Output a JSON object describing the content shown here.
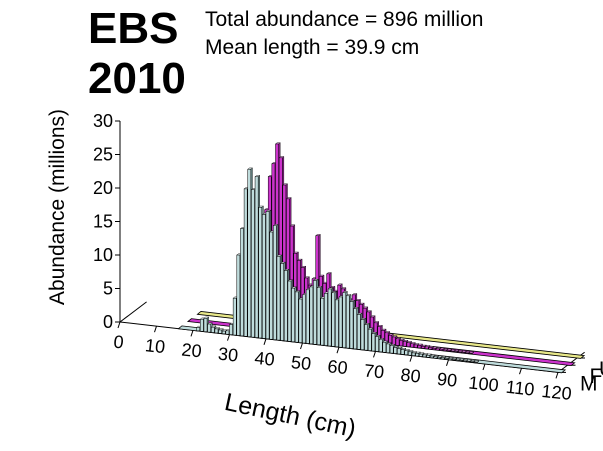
{
  "chart_data": {
    "type": "bar",
    "chart_style": "3d-depth",
    "title_line1": "EBS",
    "title_line2": "2010",
    "subtitle_line1": "Total abundance = 896 million",
    "subtitle_line2": "Mean length = 39.9 cm",
    "xlabel": "Length (cm)",
    "ylabel": "Abundance (millions)",
    "ylim": [
      0,
      30
    ],
    "yticks": [
      "0",
      "5",
      "10",
      "15",
      "20",
      "25",
      "30"
    ],
    "xticks": [
      "0",
      "10",
      "20",
      "30",
      "40",
      "50",
      "60",
      "70",
      "80",
      "90",
      "100",
      "110",
      "120"
    ],
    "series_labels": [
      "M",
      "F",
      "U"
    ],
    "colors": {
      "M": "#bfdcdc",
      "F": "#cc33cc",
      "U": "#e8e88a"
    },
    "x": [
      0,
      1,
      2,
      3,
      4,
      5,
      6,
      7,
      8,
      9,
      10,
      11,
      12,
      13,
      14,
      15,
      16,
      17,
      18,
      19,
      20,
      21,
      22,
      23,
      24,
      25,
      26,
      27,
      28,
      29,
      30,
      31,
      32,
      33,
      34,
      35,
      36,
      37,
      38,
      39,
      40,
      41,
      42,
      43,
      44,
      45,
      46,
      47,
      48,
      49,
      50,
      51,
      52,
      53,
      54,
      55,
      56,
      57,
      58,
      59,
      60,
      61,
      62,
      63,
      64,
      65,
      66,
      67,
      68,
      69,
      70,
      71,
      72,
      73,
      74,
      75,
      76,
      77,
      78,
      79,
      80,
      81,
      82,
      83,
      84,
      85,
      86,
      87,
      88,
      89,
      90,
      91,
      92,
      93,
      94,
      95,
      96,
      97,
      98,
      99,
      100,
      101,
      102,
      103,
      104,
      105,
      106,
      107,
      108,
      109,
      110,
      111,
      112,
      113,
      114,
      115,
      116,
      117,
      118,
      119,
      120
    ],
    "series": [
      {
        "name": "M",
        "values": [
          0,
          0,
          0,
          0,
          0,
          0,
          0,
          0,
          0,
          0,
          0,
          0,
          0,
          0,
          0,
          0,
          0,
          0,
          0,
          0,
          0,
          0.5,
          1.8,
          2.0,
          1.2,
          0.8,
          0.6,
          0.5,
          0.4,
          0.5,
          1.5,
          5.5,
          12.0,
          16.0,
          22.0,
          25.0,
          22.0,
          24.0,
          19.5,
          18.5,
          19.0,
          16.0,
          17.0,
          12.5,
          11.5,
          10.5,
          9.0,
          8.0,
          7.5,
          6.5,
          7.2,
          8.0,
          8.5,
          9.5,
          8.5,
          7.0,
          7.8,
          8.5,
          8.0,
          7.0,
          7.5,
          8.2,
          7.8,
          7.0,
          6.0,
          5.2,
          4.5,
          3.8,
          3.2,
          2.6,
          2.2,
          1.8,
          1.5,
          1.3,
          1.1,
          0.9,
          0.8,
          0.7,
          0.6,
          0.5,
          0.4,
          0.4,
          0.35,
          0.3,
          0.3,
          0.25,
          0.2,
          0.2,
          0.2,
          0.15,
          0.15,
          0.1,
          0.1,
          0.1,
          0.1,
          0.1,
          0.1,
          0.1,
          0.05,
          0.05,
          0.05,
          0.05,
          0.05,
          0.05,
          0.05,
          0.05,
          0.05,
          0.05,
          0.05,
          0.05,
          0.05,
          0.05,
          0.05,
          0.05,
          0.05,
          0.05,
          0.05,
          0.05,
          0.05,
          0.05,
          0.05
        ]
      },
      {
        "name": "F",
        "values": [
          0,
          0,
          0,
          0,
          0,
          0,
          0,
          0,
          0,
          0,
          0,
          0,
          0,
          0,
          0,
          0,
          0,
          0,
          0,
          0,
          0,
          0,
          0,
          0,
          0,
          0,
          0,
          0,
          0,
          0,
          0,
          0,
          0.3,
          1.0,
          3.0,
          8.0,
          13.0,
          18.0,
          23.0,
          25.0,
          28.0,
          26.0,
          22.0,
          20.0,
          16.0,
          12.0,
          11.0,
          10.0,
          8.5,
          7.5,
          8.5,
          15.0,
          9.0,
          8.0,
          9.5,
          7.5,
          7.0,
          8.0,
          7.5,
          6.5,
          6.0,
          6.8,
          6.0,
          5.5,
          5.0,
          4.5,
          3.8,
          3.0,
          2.5,
          2.0,
          1.7,
          1.4,
          1.2,
          1.0,
          0.8,
          0.7,
          0.6,
          0.5,
          0.4,
          0.4,
          0.3,
          0.3,
          0.25,
          0.2,
          0.2,
          0.2,
          0.15,
          0.15,
          0.1,
          0.1,
          0.1,
          0.1,
          0.1,
          0.1,
          0.05,
          0.05,
          0.05,
          0.05,
          0.05,
          0.05,
          0.05,
          0.05,
          0.05,
          0.05,
          0.05,
          0.05,
          0.05,
          0.05,
          0.05,
          0.05,
          0.05,
          0.05,
          0.05,
          0.05,
          0.05,
          0.05,
          0.05,
          0.05,
          0.05,
          0.05,
          0.05
        ]
      },
      {
        "name": "U",
        "values": [
          0,
          0,
          0,
          0,
          0,
          0,
          0,
          0,
          0,
          0,
          0,
          0,
          0,
          0,
          0,
          0,
          0,
          0,
          0,
          0,
          0,
          0,
          0,
          0,
          0,
          0,
          0,
          0,
          0,
          0,
          0,
          0,
          0,
          0,
          0,
          0,
          0,
          0,
          0,
          0,
          0,
          0,
          0,
          0,
          0,
          0,
          0,
          0,
          0,
          0,
          0,
          0,
          0,
          0,
          0,
          0,
          0,
          0,
          0,
          0,
          0,
          0,
          0,
          0,
          0,
          0,
          0,
          0,
          0,
          0,
          0,
          0,
          0,
          0,
          0,
          0,
          0,
          0,
          0,
          0,
          0,
          0,
          0,
          0,
          0,
          0,
          0,
          0,
          0,
          0,
          0,
          0,
          0,
          0,
          0,
          0,
          0,
          0,
          0,
          0,
          0,
          0,
          0,
          0,
          0,
          0,
          0,
          0,
          0,
          0,
          0,
          0,
          0,
          0,
          0,
          0,
          0,
          0,
          0,
          0,
          0
        ]
      }
    ]
  }
}
